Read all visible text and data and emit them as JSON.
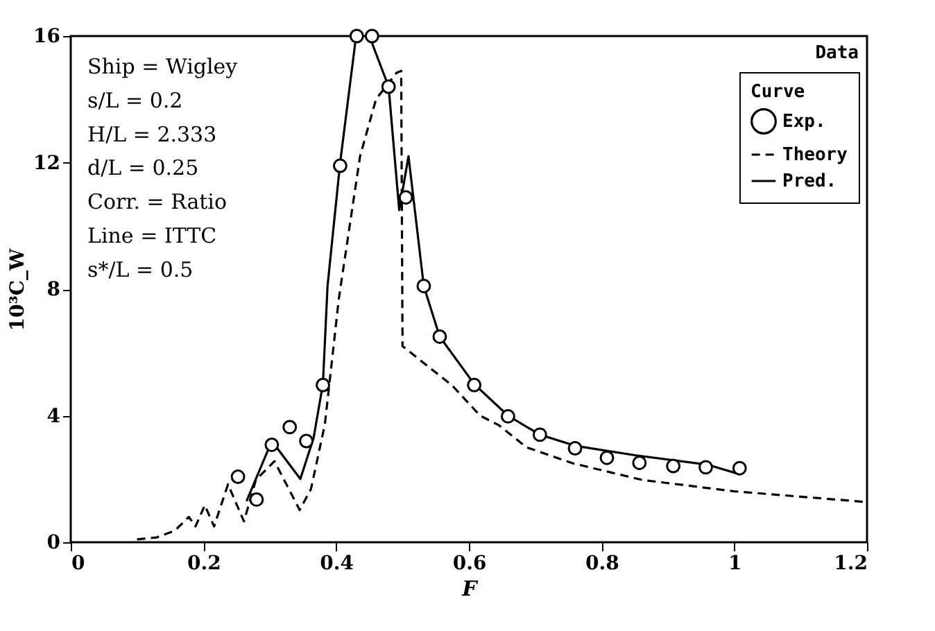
{
  "chart_data": {
    "type": "line",
    "xlabel": "F",
    "ylabel": "10³C_W",
    "xlim": [
      0,
      1.2
    ],
    "xticks": [
      0,
      0.2,
      0.4,
      0.6,
      0.8,
      1,
      1.2
    ],
    "ylim": [
      0,
      16
    ],
    "yticks": [
      0,
      4,
      8,
      12,
      16
    ],
    "grid": false,
    "legend": "top right",
    "legend_title": "Curve",
    "series": [
      {
        "name": "Exp.",
        "type": "scatter",
        "marker": "circle",
        "color": "#000000",
        "x": [
          0.252,
          0.28,
          0.303,
          0.33,
          0.355,
          0.38,
          0.406,
          0.431,
          0.454,
          0.479,
          0.505,
          0.532,
          0.556,
          0.608,
          0.659,
          0.707,
          0.76,
          0.808,
          0.857,
          0.908,
          0.957,
          1.008
        ],
        "values": [
          2.07,
          1.35,
          3.08,
          3.64,
          3.2,
          4.97,
          11.9,
          16.0,
          16.0,
          14.4,
          10.9,
          8.1,
          6.5,
          4.97,
          3.98,
          3.4,
          2.97,
          2.67,
          2.51,
          2.41,
          2.37,
          2.34
        ]
      },
      {
        "name": "Theory",
        "type": "line",
        "line_style": "dashed",
        "color": "#000000",
        "x": [
          0.1,
          0.129,
          0.157,
          0.178,
          0.188,
          0.202,
          0.216,
          0.237,
          0.261,
          0.279,
          0.307,
          0.345,
          0.362,
          0.383,
          0.404,
          0.436,
          0.46,
          0.491,
          0.498,
          0.5,
          0.53,
          0.575,
          0.617,
          0.645,
          0.687,
          0.756,
          0.861,
          1.0,
          1.2
        ],
        "values": [
          0.09,
          0.15,
          0.37,
          0.8,
          0.5,
          1.17,
          0.5,
          1.83,
          0.66,
          1.97,
          2.56,
          1.02,
          1.68,
          3.73,
          7.7,
          12.2,
          14.0,
          14.84,
          14.9,
          6.2,
          5.7,
          4.95,
          4.0,
          3.7,
          3.0,
          2.5,
          1.97,
          1.61,
          1.27
        ]
      },
      {
        "name": "Pred.",
        "type": "line",
        "line_style": "solid",
        "color": "#000000",
        "x": [
          0.265,
          0.303,
          0.346,
          0.366,
          0.38,
          0.387,
          0.406,
          0.43,
          0.45,
          0.479,
          0.495,
          0.509,
          0.532,
          0.556,
          0.608,
          0.659,
          0.707,
          0.76,
          0.85,
          0.96,
          1.008
        ],
        "values": [
          1.3,
          3.2,
          2.0,
          3.3,
          5.0,
          8.1,
          12.0,
          16.0,
          16.0,
          14.4,
          10.5,
          12.2,
          8.1,
          6.5,
          5.0,
          4.0,
          3.4,
          3.05,
          2.75,
          2.45,
          2.15
        ]
      }
    ],
    "annotations": [
      "Ship  =  Wigley",
      "s/L  =  0.2",
      "H/L  =  2.333",
      "d/L  =  0.25",
      "Corr.  =  Ratio",
      "Line  =  ITTC",
      "s*/L  =  0.5",
      "Data"
    ]
  }
}
